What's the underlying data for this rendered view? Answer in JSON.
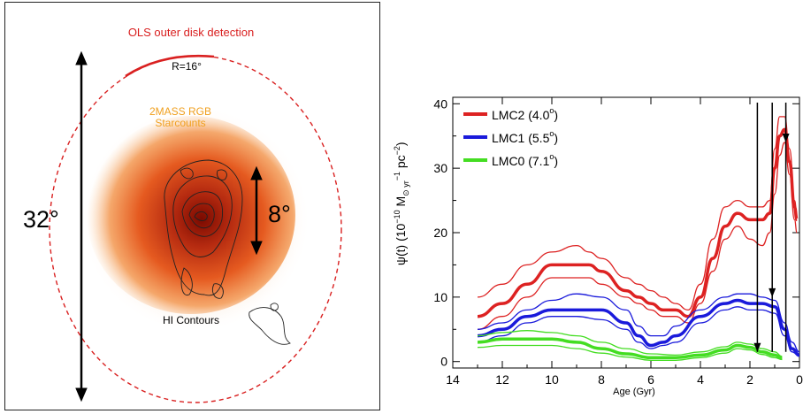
{
  "left_panel": {
    "detection_label": "OLS outer disk detection",
    "radius_label": "R=16°",
    "starcounts_label_line1": "2MASS RGB",
    "starcounts_label_line2": "Starcounts",
    "outer_extent_label": "32°",
    "inner_extent_label": "8°",
    "hi_label": "HI Contours",
    "colors": {
      "detection": "#d92020",
      "starcounts": "#f0a020",
      "density_core": "#7a0a00",
      "density_edge": "#f08040"
    }
  },
  "chart_data": {
    "type": "line",
    "xlabel": "Age (Gyr)",
    "ylabel": "ψ(t) (10",
    "ylabel_exp1": "−10",
    "ylabel_mid": " M",
    "ylabel_sub": "⊙ yr",
    "ylabel_exp2": "−1",
    "ylabel_end": " pc",
    "ylabel_exp3": "−2",
    "ylabel_close": ")",
    "xlim": [
      14,
      0
    ],
    "ylim": [
      -1,
      41
    ],
    "xticks": [
      14,
      12,
      10,
      8,
      6,
      4,
      2,
      0
    ],
    "yticks": [
      0,
      10,
      20,
      30,
      40
    ],
    "arrows_age": [
      1.7,
      1.1,
      0.55
    ],
    "series": [
      {
        "name": "LMC2 (4.0°)",
        "legend_label": "LMC2 (4.0",
        "legend_deg": "o",
        "legend_close": ")",
        "color": "#dd2222",
        "x": [
          13,
          12,
          11,
          10,
          9,
          8.5,
          8,
          7,
          6.5,
          6,
          5.5,
          5,
          4.5,
          4,
          3.5,
          3,
          2.5,
          2,
          1.5,
          1.2,
          1,
          0.8,
          0.6,
          0.4,
          0.2,
          0.1
        ],
        "y": [
          7,
          9,
          12,
          15,
          15,
          15,
          14,
          11,
          10,
          9,
          8,
          8,
          7,
          10,
          16,
          21,
          23,
          22,
          22,
          23,
          30,
          35,
          36,
          31,
          24,
          22
        ],
        "upper": [
          10,
          12,
          15,
          17,
          18,
          17,
          16,
          13,
          12,
          11,
          10,
          9,
          8,
          12,
          19,
          24,
          25,
          24,
          24,
          25,
          33,
          38,
          38,
          33,
          25,
          23
        ],
        "lower": [
          5,
          7,
          10,
          13,
          13,
          13,
          12,
          10,
          9,
          8,
          7,
          7,
          6,
          9,
          14,
          19,
          21,
          19,
          18,
          20,
          26,
          32,
          34,
          29,
          22,
          20
        ]
      },
      {
        "name": "LMC1 (5.5°)",
        "legend_label": "LMC1 (5.5",
        "legend_deg": "o",
        "legend_close": ")",
        "color": "#1a1adb",
        "x": [
          13,
          12,
          11,
          10,
          9,
          8,
          7,
          6.5,
          6,
          5.5,
          5,
          4,
          3,
          2.5,
          2,
          1.5,
          1,
          0.6,
          0.3,
          0
        ],
        "y": [
          4,
          5,
          7,
          8,
          8,
          8,
          6,
          4,
          2.5,
          3,
          4,
          7,
          9,
          9.5,
          9,
          9,
          8.5,
          5,
          2,
          1
        ],
        "upper": [
          5,
          6,
          8,
          9.5,
          10.5,
          10,
          8,
          5.5,
          4,
          4,
          5.5,
          8,
          10,
          10.5,
          10.5,
          10,
          9.5,
          6,
          3,
          1.5
        ],
        "lower": [
          3,
          4,
          6,
          7,
          7,
          6.5,
          5,
          3,
          2,
          2.5,
          3,
          6,
          8,
          8.5,
          8,
          8,
          7.5,
          4,
          1.5,
          0.8
        ]
      },
      {
        "name": "LMC0 (7.1°)",
        "legend_label": "LMC0 (7.1",
        "legend_deg": "o",
        "legend_close": ")",
        "color": "#44dd22",
        "x": [
          13,
          12,
          11,
          10,
          9,
          8,
          7,
          6,
          5,
          4,
          3,
          2.5,
          2,
          1.5,
          1,
          0.7
        ],
        "y": [
          3,
          3.5,
          3.5,
          3.5,
          3,
          2,
          1.2,
          0.6,
          0.6,
          1,
          1.8,
          2.5,
          2.2,
          1.5,
          1,
          0.5
        ],
        "upper": [
          4,
          4.5,
          4.8,
          4.5,
          4,
          3,
          2,
          1.2,
          1,
          1.5,
          2.3,
          3,
          2.7,
          2,
          1.5,
          0.8
        ],
        "lower": [
          2.2,
          2.5,
          2.5,
          2.5,
          2,
          1.3,
          0.7,
          0.2,
          0.2,
          0.6,
          1.3,
          2,
          1.8,
          1.1,
          0.6,
          0.3
        ]
      }
    ]
  }
}
